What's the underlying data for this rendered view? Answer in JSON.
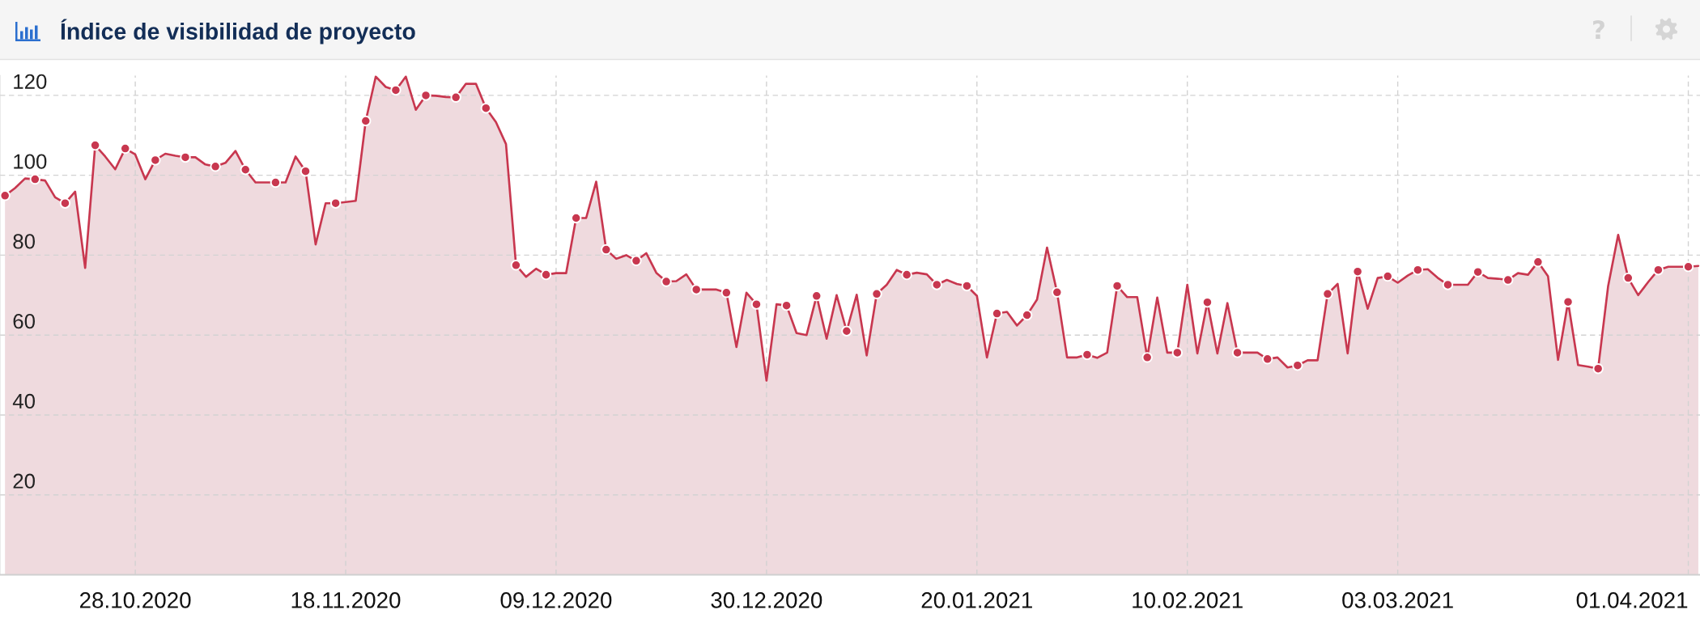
{
  "chart_data": {
    "type": "area",
    "title": "Índice de visibilidad de proyecto",
    "x": [
      "2020-10-15",
      "2020-10-16",
      "2020-10-17",
      "2020-10-18",
      "2020-10-19",
      "2020-10-20",
      "2020-10-21",
      "2020-10-22",
      "2020-10-23",
      "2020-10-24",
      "2020-10-25",
      "2020-10-26",
      "2020-10-27",
      "2020-10-28",
      "2020-10-29",
      "2020-10-30",
      "2020-10-31",
      "2020-11-01",
      "2020-11-02",
      "2020-11-03",
      "2020-11-04",
      "2020-11-05",
      "2020-11-06",
      "2020-11-07",
      "2020-11-08",
      "2020-11-09",
      "2020-11-10",
      "2020-11-11",
      "2020-11-12",
      "2020-11-13",
      "2020-11-14",
      "2020-11-15",
      "2020-11-16",
      "2020-11-17",
      "2020-11-18",
      "2020-11-19",
      "2020-11-20",
      "2020-11-21",
      "2020-11-22",
      "2020-11-23",
      "2020-11-24",
      "2020-11-25",
      "2020-11-26",
      "2020-11-27",
      "2020-11-28",
      "2020-11-29",
      "2020-11-30",
      "2020-12-01",
      "2020-12-02",
      "2020-12-03",
      "2020-12-04",
      "2020-12-05",
      "2020-12-06",
      "2020-12-07",
      "2020-12-08",
      "2020-12-09",
      "2020-12-10",
      "2020-12-11",
      "2020-12-12",
      "2020-12-13",
      "2020-12-14",
      "2020-12-15",
      "2020-12-16",
      "2020-12-17",
      "2020-12-18",
      "2020-12-19",
      "2020-12-20",
      "2020-12-21",
      "2020-12-22",
      "2020-12-23",
      "2020-12-24",
      "2020-12-25",
      "2020-12-26",
      "2020-12-27",
      "2020-12-28",
      "2020-12-29",
      "2020-12-30",
      "2020-12-31",
      "2021-01-01",
      "2021-01-02",
      "2021-01-03",
      "2021-01-04",
      "2021-01-05",
      "2021-01-06",
      "2021-01-07",
      "2021-01-08",
      "2021-01-09",
      "2021-01-10",
      "2021-01-11",
      "2021-01-12",
      "2021-01-13",
      "2021-01-14",
      "2021-01-15",
      "2021-01-16",
      "2021-01-17",
      "2021-01-18",
      "2021-01-19",
      "2021-01-20",
      "2021-01-21",
      "2021-01-22",
      "2021-01-23",
      "2021-01-24",
      "2021-01-25",
      "2021-01-26",
      "2021-01-27",
      "2021-01-28",
      "2021-01-29",
      "2021-01-30",
      "2021-01-31",
      "2021-02-01",
      "2021-02-02",
      "2021-02-03",
      "2021-02-04",
      "2021-02-05",
      "2021-02-06",
      "2021-02-07",
      "2021-02-08",
      "2021-02-09",
      "2021-02-10",
      "2021-02-11",
      "2021-02-12",
      "2021-02-13",
      "2021-02-14",
      "2021-02-15",
      "2021-02-16",
      "2021-02-17",
      "2021-02-18",
      "2021-02-19",
      "2021-02-20",
      "2021-02-21",
      "2021-02-22",
      "2021-02-23",
      "2021-02-24",
      "2021-02-25",
      "2021-02-26",
      "2021-02-27",
      "2021-02-28",
      "2021-03-01",
      "2021-03-02",
      "2021-03-03",
      "2021-03-04",
      "2021-03-05",
      "2021-03-06",
      "2021-03-07",
      "2021-03-08",
      "2021-03-09",
      "2021-03-10",
      "2021-03-11",
      "2021-03-12",
      "2021-03-13",
      "2021-03-14",
      "2021-03-15",
      "2021-03-16",
      "2021-03-17",
      "2021-03-18",
      "2021-03-19",
      "2021-03-20",
      "2021-03-21",
      "2021-03-22",
      "2021-03-23",
      "2021-03-24",
      "2021-03-25",
      "2021-03-26",
      "2021-03-27",
      "2021-03-28",
      "2021-03-29",
      "2021-03-30",
      "2021-03-31",
      "2021-04-01",
      "2021-04-02"
    ],
    "series": [
      {
        "type": "area",
        "color": "#c8374f",
        "values": [
          94.9,
          96.8,
          99.2,
          99.0,
          98.7,
          94.5,
          93.0,
          95.9,
          76.8,
          107.5,
          104.7,
          101.5,
          106.7,
          105.2,
          99.0,
          103.8,
          105.4,
          104.9,
          104.5,
          104.5,
          102.7,
          102.2,
          103.1,
          106.1,
          101.4,
          98.2,
          98.2,
          98.2,
          98.2,
          104.7,
          101.0,
          82.7,
          93.0,
          93.0,
          93.3,
          93.6,
          113.6,
          124.7,
          122.1,
          121.3,
          124.7,
          116.4,
          120.0,
          119.9,
          119.6,
          119.5,
          122.9,
          122.9,
          116.8,
          113.3,
          107.8,
          77.5,
          74.6,
          76.6,
          75.1,
          75.5,
          75.5,
          89.3,
          89.3,
          98.4,
          81.4,
          79.1,
          80.0,
          78.6,
          80.5,
          75.6,
          73.4,
          73.5,
          75.2,
          71.4,
          71.4,
          71.4,
          70.6,
          57.0,
          70.6,
          67.7,
          48.6,
          67.7,
          67.4,
          60.5,
          60.0,
          69.8,
          59.1,
          70.0,
          61.0,
          70.1,
          54.9,
          70.3,
          72.6,
          76.3,
          75.1,
          75.6,
          75.2,
          72.6,
          73.8,
          72.8,
          72.3,
          69.8,
          54.4,
          65.4,
          65.8,
          62.4,
          65.0,
          68.9,
          81.9,
          70.7,
          54.4,
          54.4,
          55.1,
          54.3,
          55.6,
          72.3,
          69.5,
          69.5,
          54.4,
          69.4,
          55.6,
          55.6,
          72.6,
          55.4,
          68.2,
          55.4,
          68.0,
          55.6,
          55.6,
          55.6,
          54.0,
          54.4,
          51.9,
          52.4,
          53.7,
          53.7,
          70.3,
          72.8,
          55.4,
          75.9,
          66.6,
          74.3,
          74.7,
          73.1,
          74.9,
          76.3,
          76.5,
          74.3,
          72.6,
          72.6,
          72.6,
          75.8,
          74.3,
          74.1,
          73.8,
          75.5,
          75.1,
          78.3,
          74.7,
          53.8,
          68.3,
          52.5,
          52.1,
          51.6,
          72.3,
          85.1,
          74.3,
          70.0,
          73.3,
          76.3,
          77.1,
          77.1,
          77.1,
          77.3
        ]
      },
      {
        "type": "scatter",
        "color": "#c8374f",
        "marker": "circle",
        "x": [
          "2020-10-15",
          "2020-10-18",
          "2020-10-21",
          "2020-10-24",
          "2020-10-27",
          "2020-10-30",
          "2020-11-02",
          "2020-11-05",
          "2020-11-08",
          "2020-11-11",
          "2020-11-14",
          "2020-11-17",
          "2020-11-20",
          "2020-11-23",
          "2020-11-26",
          "2020-11-29",
          "2020-12-02",
          "2020-12-05",
          "2020-12-08",
          "2020-12-11",
          "2020-12-14",
          "2020-12-17",
          "2020-12-20",
          "2020-12-23",
          "2020-12-26",
          "2020-12-29",
          "2021-01-01",
          "2021-01-04",
          "2021-01-07",
          "2021-01-10",
          "2021-01-13",
          "2021-01-16",
          "2021-01-19",
          "2021-01-22",
          "2021-01-25",
          "2021-01-28",
          "2021-01-31",
          "2021-02-03",
          "2021-02-06",
          "2021-02-09",
          "2021-02-12",
          "2021-02-15",
          "2021-02-18",
          "2021-02-21",
          "2021-02-24",
          "2021-02-27",
          "2021-03-02",
          "2021-03-05",
          "2021-03-08",
          "2021-03-11",
          "2021-03-14",
          "2021-03-17",
          "2021-03-20",
          "2021-03-23",
          "2021-03-26",
          "2021-03-29",
          "2021-04-01"
        ],
        "values": [
          94.9,
          99.0,
          93.0,
          107.5,
          106.7,
          103.8,
          104.5,
          102.2,
          101.4,
          98.2,
          101.0,
          93.0,
          113.6,
          121.3,
          120.0,
          119.5,
          116.8,
          77.5,
          75.1,
          89.3,
          81.4,
          78.6,
          73.4,
          71.4,
          70.6,
          67.7,
          67.4,
          69.8,
          61.0,
          70.3,
          75.1,
          72.6,
          72.3,
          65.4,
          65.0,
          70.7,
          55.1,
          72.3,
          54.4,
          55.6,
          68.2,
          55.6,
          54.0,
          52.4,
          70.3,
          75.9,
          74.7,
          76.3,
          72.6,
          75.8,
          73.8,
          78.3,
          68.3,
          51.6,
          74.3,
          76.3,
          77.1
        ]
      }
    ],
    "xlim": [
      "2020-10-14T12:00",
      "2021-04-02T04:00"
    ],
    "xticks": [
      {
        "value": "2020-10-28",
        "label": "28.10.2020"
      },
      {
        "value": "2020-11-18",
        "label": "18.11.2020"
      },
      {
        "value": "2020-12-09",
        "label": "09.12.2020"
      },
      {
        "value": "2020-12-30",
        "label": "30.12.2020"
      },
      {
        "value": "2021-01-20",
        "label": "20.01.2021"
      },
      {
        "value": "2021-02-10",
        "label": "10.02.2021"
      },
      {
        "value": "2021-03-03",
        "label": "03.03.2021"
      },
      {
        "value": "2021-04-01",
        "label": "01.04.2021"
      }
    ],
    "ylim": [
      0,
      125
    ],
    "yticks": [
      20,
      40,
      60,
      80,
      100,
      120
    ],
    "grid": true
  }
}
